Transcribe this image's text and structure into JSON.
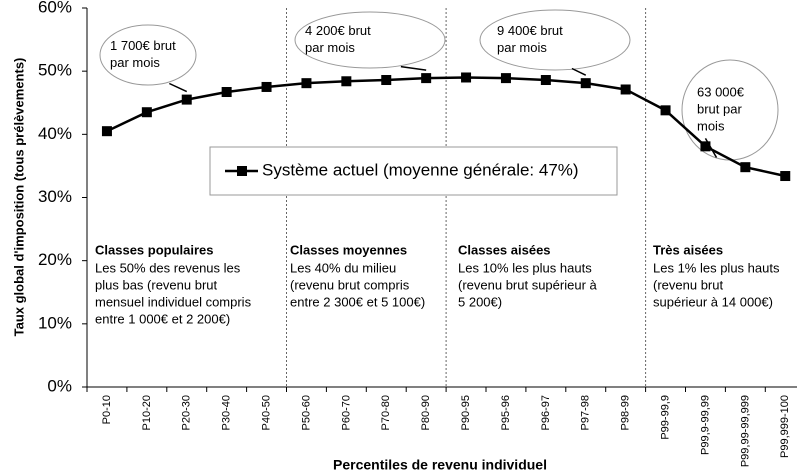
{
  "chart_data": {
    "type": "line",
    "x_label": "Percentiles de revenu individuel",
    "y_label": "Taux global d'imposition (tous prélèvements)",
    "categories": [
      "P0-10",
      "P10-20",
      "P20-30",
      "P30-40",
      "P40-50",
      "P50-60",
      "P60-70",
      "P70-80",
      "P80-90",
      "P90-95",
      "P95-96",
      "P96-97",
      "P97-98",
      "P98-99",
      "P99-99,9",
      "P99,9-99,99",
      "P99,99-99,999",
      "P99,999-100"
    ],
    "series": [
      {
        "name": "Système actuel (moyenne générale: 47%)",
        "color": "#000000",
        "values": [
          40.5,
          43.5,
          45.5,
          46.7,
          47.5,
          48.1,
          48.4,
          48.6,
          48.9,
          49.0,
          48.9,
          48.6,
          48.1,
          47.1,
          43.8,
          38.1,
          34.8,
          33.4
        ]
      }
    ],
    "ylim": [
      0,
      60
    ],
    "yticks": [
      {
        "value": 0,
        "label": "0%"
      },
      {
        "value": 10,
        "label": "10%"
      },
      {
        "value": 20,
        "label": "20%"
      },
      {
        "value": 30,
        "label": "30%"
      },
      {
        "value": 40,
        "label": "40%"
      },
      {
        "value": 50,
        "label": "50%"
      },
      {
        "value": 60,
        "label": "60%"
      }
    ],
    "callouts": [
      {
        "lines": [
          "1 700€ brut",
          "par mois"
        ]
      },
      {
        "lines": [
          "4 200€ brut",
          "par mois"
        ]
      },
      {
        "lines": [
          "9 400€ brut",
          "par mois"
        ]
      },
      {
        "lines": [
          "63 000€",
          "brut par",
          "mois"
        ]
      }
    ],
    "groups": [
      {
        "title": "Classes populaires",
        "lines": [
          "Les 50% des revenus les",
          "plus bas (revenu brut",
          "mensuel individuel compris",
          "entre 1 000€ et 2 200€)"
        ]
      },
      {
        "title": "Classes moyennes",
        "lines": [
          "Les 40% du milieu",
          "(revenu brut compris",
          "entre 2 300€ et 5 100€)"
        ]
      },
      {
        "title": "Classes aisées",
        "lines": [
          "Les 10% les plus hauts",
          "(revenu brut supérieur à",
          "5 200€)"
        ]
      },
      {
        "title": "Très aisées",
        "lines": [
          "Les 1% les plus hauts",
          "(revenu brut",
          "supérieur à 14 000€)"
        ]
      }
    ]
  }
}
